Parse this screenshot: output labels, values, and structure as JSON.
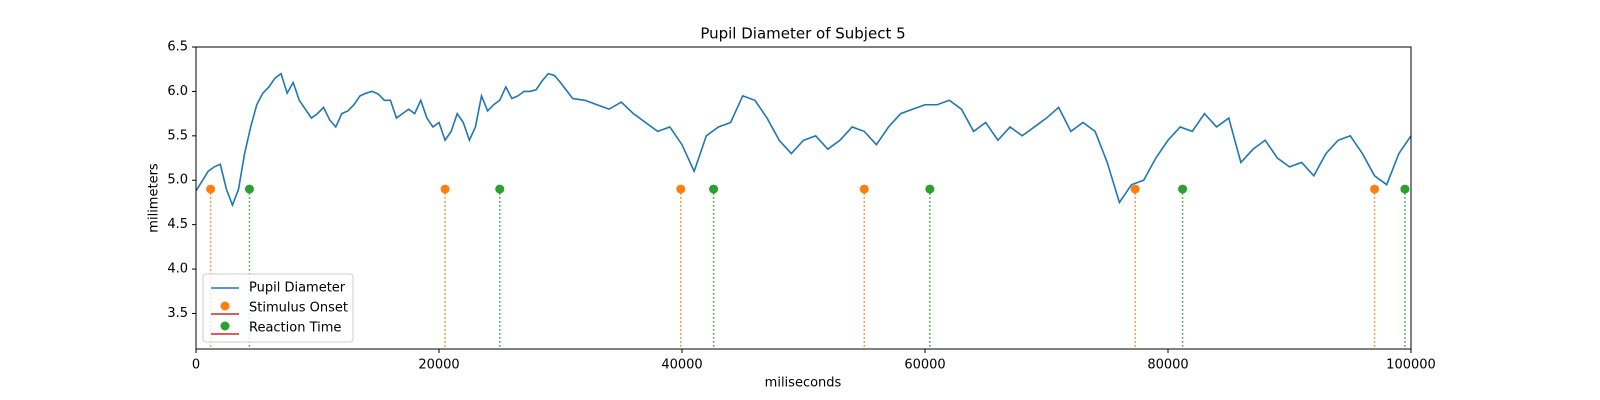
{
  "chart_data": {
    "type": "line",
    "title": "Pupil Diameter of Subject 5",
    "xlabel": "miliseconds",
    "ylabel": "milimeters",
    "xlim": [
      0,
      100000
    ],
    "ylim": [
      3.1,
      6.5
    ],
    "xticks": [
      0,
      20000,
      40000,
      60000,
      80000,
      100000
    ],
    "yticks": [
      {
        "value": 3.5,
        "label": "3.5"
      },
      {
        "value": 4,
        "label": "4.0"
      },
      {
        "value": 4.5,
        "label": "4.5"
      },
      {
        "value": 5,
        "label": "5.0"
      },
      {
        "value": 5.5,
        "label": "5.5"
      },
      {
        "value": 6,
        "label": "6.0"
      },
      {
        "value": 6.5,
        "label": "6.5"
      }
    ],
    "legend": "lower left",
    "series": [
      {
        "name": "Pupil Diameter",
        "color": "#1f77b4",
        "type": "line",
        "x": [
          0,
          1000,
          1500,
          2000,
          2500,
          3000,
          3500,
          4000,
          4500,
          5000,
          5500,
          6000,
          6500,
          7000,
          7500,
          8000,
          8500,
          9000,
          9500,
          10000,
          10500,
          11000,
          11500,
          12000,
          12500,
          13000,
          13500,
          14000,
          14500,
          15000,
          15500,
          16000,
          16500,
          17000,
          17500,
          18000,
          18500,
          19000,
          19500,
          20000,
          20500,
          21000,
          21500,
          22000,
          22500,
          23000,
          23500,
          24000,
          24500,
          25000,
          25500,
          26000,
          26500,
          27000,
          27500,
          28000,
          28500,
          29000,
          29500,
          30000,
          31000,
          32000,
          33000,
          34000,
          35000,
          36000,
          37000,
          38000,
          39000,
          40000,
          41000,
          42000,
          43000,
          44000,
          45000,
          46000,
          47000,
          48000,
          49000,
          50000,
          51000,
          52000,
          53000,
          54000,
          55000,
          56000,
          57000,
          58000,
          59000,
          60000,
          61000,
          62000,
          63000,
          64000,
          65000,
          66000,
          67000,
          68000,
          69000,
          70000,
          71000,
          72000,
          73000,
          74000,
          75000,
          76000,
          77000,
          78000,
          79000,
          80000,
          81000,
          82000,
          83000,
          84000,
          85000,
          86000,
          87000,
          88000,
          89000,
          90000,
          91000,
          92000,
          93000,
          94000,
          95000,
          96000,
          97000,
          98000,
          99000,
          100000
        ],
        "values": [
          4.88,
          5.1,
          5.15,
          5.18,
          4.9,
          4.72,
          4.9,
          5.3,
          5.6,
          5.85,
          5.98,
          6.05,
          6.15,
          6.2,
          5.98,
          6.1,
          5.9,
          5.8,
          5.7,
          5.75,
          5.82,
          5.68,
          5.6,
          5.75,
          5.78,
          5.85,
          5.95,
          5.98,
          6.0,
          5.97,
          5.9,
          5.9,
          5.7,
          5.75,
          5.8,
          5.75,
          5.9,
          5.7,
          5.6,
          5.65,
          5.45,
          5.55,
          5.75,
          5.65,
          5.45,
          5.6,
          5.95,
          5.78,
          5.85,
          5.9,
          6.05,
          5.92,
          5.95,
          6.0,
          6.0,
          6.02,
          6.12,
          6.2,
          6.18,
          6.1,
          5.92,
          5.9,
          5.85,
          5.8,
          5.88,
          5.75,
          5.65,
          5.55,
          5.6,
          5.4,
          5.1,
          5.5,
          5.6,
          5.65,
          5.95,
          5.9,
          5.7,
          5.45,
          5.3,
          5.45,
          5.5,
          5.35,
          5.45,
          5.6,
          5.55,
          5.4,
          5.6,
          5.75,
          5.8,
          5.85,
          5.85,
          5.9,
          5.8,
          5.55,
          5.65,
          5.45,
          5.6,
          5.5,
          5.6,
          5.7,
          5.82,
          5.55,
          5.65,
          5.55,
          5.2,
          4.75,
          4.95,
          5.0,
          5.25,
          5.45,
          5.6,
          5.55,
          5.75,
          5.6,
          5.7,
          5.2,
          5.35,
          5.45,
          5.25,
          5.15,
          5.2,
          5.05,
          5.3,
          5.45,
          5.5,
          5.3,
          5.05,
          4.95,
          5.3,
          5.5
        ]
      },
      {
        "name": "Stimulus Onset",
        "color": "#ff7f0e",
        "type": "stem",
        "x": [
          1200,
          20500,
          39900,
          55000,
          77300,
          97000
        ],
        "values": [
          4.9,
          4.9,
          4.9,
          4.9,
          4.9,
          4.9
        ]
      },
      {
        "name": "Reaction Time",
        "color": "#2ca02c",
        "type": "stem",
        "x": [
          4400,
          25000,
          42600,
          60400,
          81200,
          99500
        ],
        "values": [
          4.9,
          4.9,
          4.9,
          4.9,
          4.9,
          4.9
        ]
      }
    ]
  }
}
